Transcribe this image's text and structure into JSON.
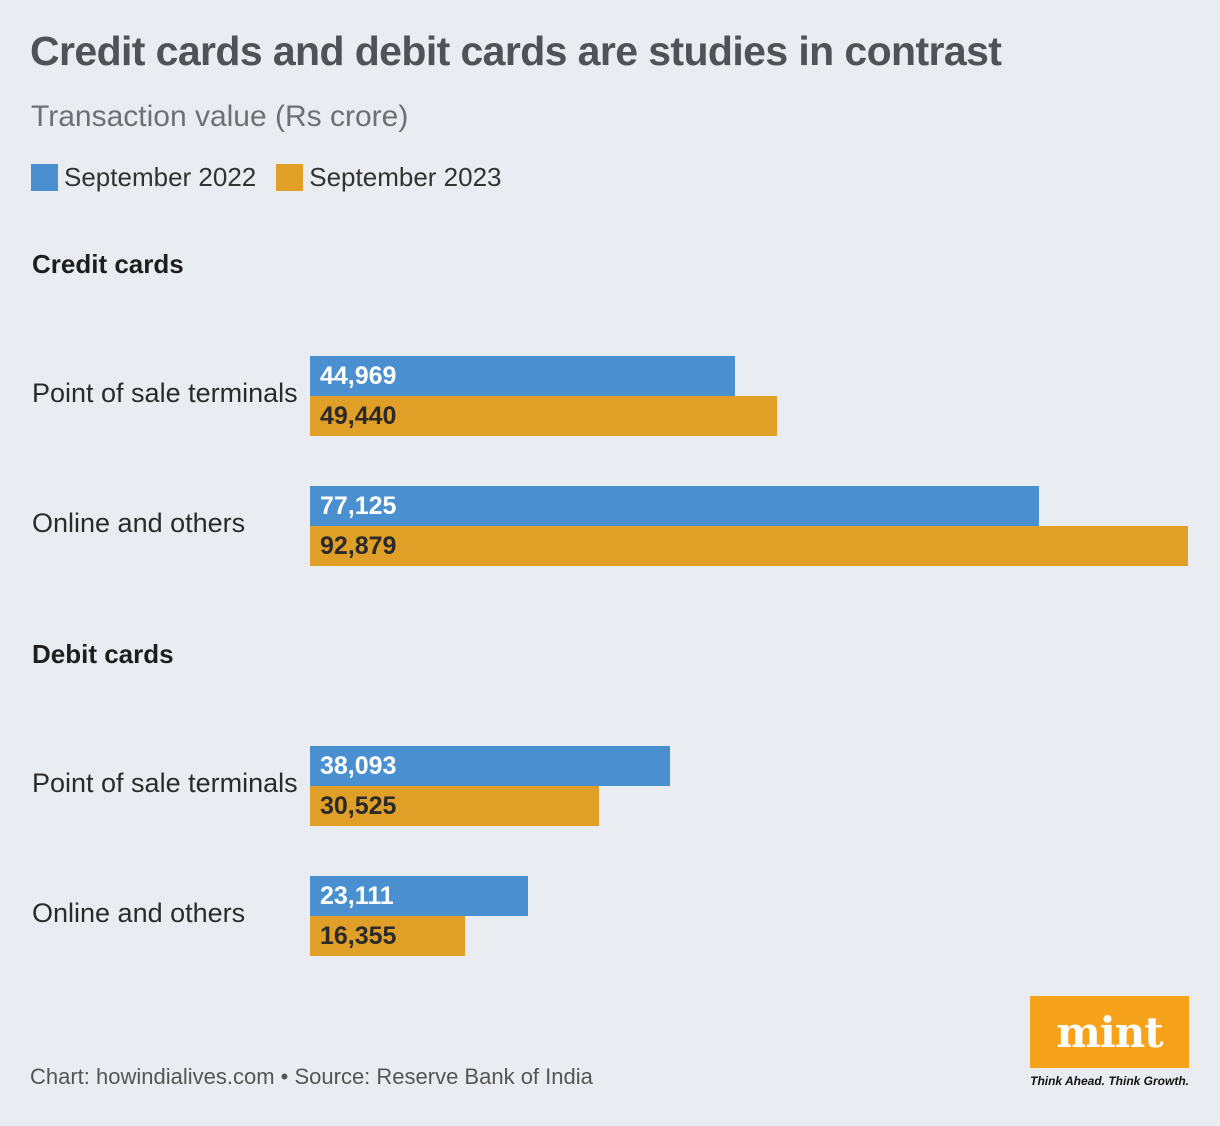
{
  "header": {
    "title": "Credit cards and debit cards are studies in contrast",
    "subtitle": "Transaction value (Rs crore)"
  },
  "legend": [
    {
      "label": "September 2022",
      "color": "#4a90d0"
    },
    {
      "label": "September 2023",
      "color": "#e0a028"
    }
  ],
  "chart_data": {
    "type": "bar",
    "orientation": "horizontal",
    "title": "Credit cards and debit cards are studies in contrast",
    "subtitle": "Transaction value (Rs crore)",
    "xlim": [
      0,
      92879
    ],
    "series_names": [
      "September 2022",
      "September 2023"
    ],
    "groups": [
      {
        "heading": "Credit cards",
        "categories": [
          "Point of sale terminals",
          "Online and others"
        ],
        "series": [
          {
            "name": "September 2022",
            "values": [
              44969,
              77125
            ],
            "labels": [
              "44,969",
              "77,125"
            ]
          },
          {
            "name": "September 2023",
            "values": [
              49440,
              92879
            ],
            "labels": [
              "49,440",
              "92,879"
            ]
          }
        ]
      },
      {
        "heading": "Debit cards",
        "categories": [
          "Point of sale terminals",
          "Online and others"
        ],
        "series": [
          {
            "name": "September 2022",
            "values": [
              38093,
              23111
            ],
            "labels": [
              "38,093",
              "23,111"
            ]
          },
          {
            "name": "September 2023",
            "values": [
              30525,
              16355
            ],
            "labels": [
              "30,525",
              "16,355"
            ]
          }
        ]
      }
    ]
  },
  "footer": {
    "source": "Chart: howindialives.com • Source: Reserve Bank of India"
  },
  "logo": {
    "word": "mint",
    "tagline": "Think Ahead. Think Growth.",
    "color": "#f7a21b"
  }
}
